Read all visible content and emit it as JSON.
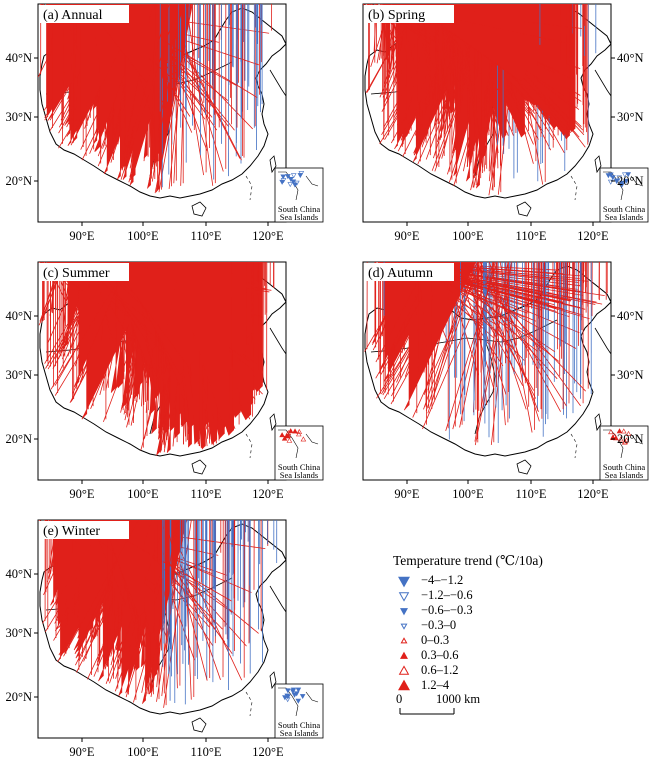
{
  "panels": [
    {
      "label": "(a) Annual",
      "lat_ticks": [
        "40°N",
        "30°N",
        "20°N"
      ],
      "lon_ticks": [
        "90°E",
        "100°E",
        "110°E",
        "120°E"
      ],
      "lat_side": "left"
    },
    {
      "label": "(b) Spring",
      "lat_ticks": [
        "40°N",
        "30°N",
        "20°N"
      ],
      "lon_ticks": [
        "90°E",
        "100°E",
        "110°E",
        "120°E"
      ],
      "lat_side": "right"
    },
    {
      "label": "(c) Summer",
      "lat_ticks": [
        "40°N",
        "30°N",
        "20°N"
      ],
      "lon_ticks": [
        "90°E",
        "100°E",
        "110°E",
        "120°E"
      ],
      "lat_side": "left"
    },
    {
      "label": "(d) Autumn",
      "lat_ticks": [
        "40°N",
        "30°N",
        "20°N"
      ],
      "lon_ticks": [
        "90°E",
        "100°E",
        "110°E",
        "120°E"
      ],
      "lat_side": "right"
    },
    {
      "label": "(e) Winter",
      "lat_ticks": [
        "40°N",
        "30°N",
        "20°N"
      ],
      "lon_ticks": [
        "90°E",
        "100°E",
        "110°E",
        "120°E"
      ],
      "lat_side": "left"
    }
  ],
  "inset": {
    "line1": "South China",
    "line2": "Sea Islands"
  },
  "legend": {
    "title": "Temperature trend (℃/10a)",
    "items": [
      {
        "label": "−4–−1.2",
        "color": "#4472c4",
        "shape": "down-triangle",
        "fill": true,
        "size": 1.0
      },
      {
        "label": "−1.2–−0.6",
        "color": "#4472c4",
        "shape": "down-triangle",
        "fill": false,
        "size": 0.8
      },
      {
        "label": "−0.6–−0.3",
        "color": "#4472c4",
        "shape": "down-triangle",
        "fill": true,
        "size": 0.45
      },
      {
        "label": "−0.3–0",
        "color": "#4472c4",
        "shape": "down-triangle",
        "fill": false,
        "size": 0.3
      },
      {
        "label": "0–0.3",
        "color": "#e0201a",
        "shape": "up-triangle",
        "fill": false,
        "size": 0.3
      },
      {
        "label": "0.3–0.6",
        "color": "#e0201a",
        "shape": "up-triangle",
        "fill": true,
        "size": 0.45
      },
      {
        "label": "0.6–1.2",
        "color": "#e0201a",
        "shape": "up-triangle",
        "fill": false,
        "size": 0.8
      },
      {
        "label": "1.2–4",
        "color": "#e0201a",
        "shape": "up-triangle",
        "fill": true,
        "size": 1.0
      }
    ]
  },
  "scale": {
    "left": "0",
    "right": "1000 km"
  }
}
